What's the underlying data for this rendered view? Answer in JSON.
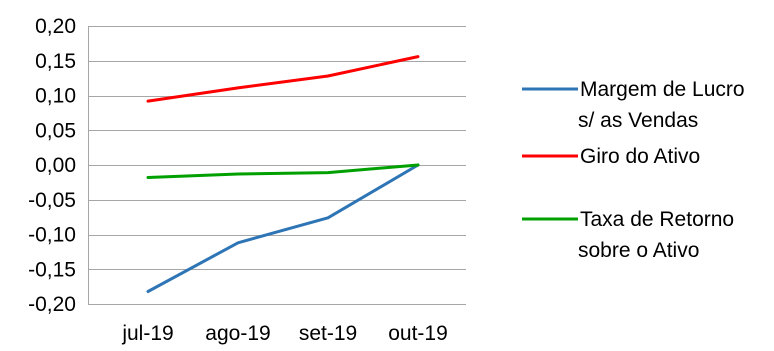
{
  "chart_data": {
    "type": "line",
    "title": "",
    "xlabel": "",
    "ylabel": "",
    "categories": [
      "jul-19",
      "ago-19",
      "set-19",
      "out-19"
    ],
    "ylim": [
      -0.2,
      0.2
    ],
    "yticks": [
      0.2,
      0.15,
      0.1,
      0.05,
      0.0,
      -0.05,
      -0.1,
      -0.15,
      -0.2
    ],
    "ytick_labels": [
      "0,20",
      "0,15",
      "0,10",
      "0,05",
      "0,00",
      "-0,05",
      "-0,10",
      "-0,15",
      "-0,20"
    ],
    "grid": true,
    "legend_position": "right",
    "series": [
      {
        "name": "Margem de Lucro s/ as Vendas",
        "legend_lines": [
          "Margem de Lucro",
          "s/ as Vendas"
        ],
        "color": "#2e75b6",
        "values": [
          -0.182,
          -0.112,
          -0.076,
          0.0
        ]
      },
      {
        "name": "Giro do Ativo",
        "legend_lines": [
          "Giro do Ativo"
        ],
        "color": "#ff0000",
        "values": [
          0.092,
          0.111,
          0.128,
          0.156
        ]
      },
      {
        "name": "Taxa de Retorno sobre o Ativo",
        "legend_lines": [
          "Taxa de Retorno",
          "sobre o Ativo"
        ],
        "color": "#00a000",
        "values": [
          -0.018,
          -0.013,
          -0.011,
          0.0
        ]
      }
    ]
  }
}
